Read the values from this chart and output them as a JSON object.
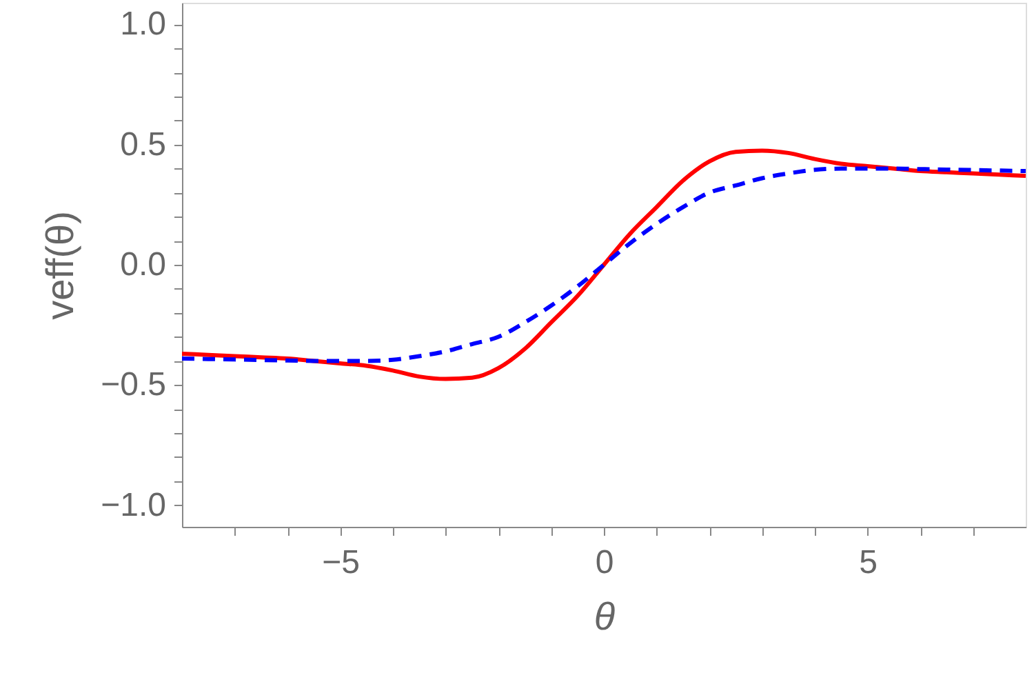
{
  "chart_data": {
    "type": "line",
    "xlabel": "θ",
    "ylabel": "veff(θ)",
    "x": [
      -8,
      -7.5,
      -7,
      -6.5,
      -6,
      -5.5,
      -5,
      -4.5,
      -4,
      -3.5,
      -3,
      -2.5,
      -2,
      -1.5,
      -1,
      -0.5,
      0,
      0.5,
      1,
      1.5,
      2,
      2.5,
      3,
      3.5,
      4,
      4.5,
      5,
      5.5,
      6,
      6.5,
      7,
      7.5,
      8
    ],
    "series": [
      {
        "color": "#ff0000",
        "line_style": "solid",
        "values": [
          -0.37,
          -0.375,
          -0.38,
          -0.385,
          -0.39,
          -0.4,
          -0.41,
          -0.42,
          -0.44,
          -0.465,
          -0.475,
          -0.47,
          -0.43,
          -0.35,
          -0.24,
          -0.13,
          0,
          0.13,
          0.24,
          0.35,
          0.43,
          0.47,
          0.475,
          0.465,
          0.44,
          0.42,
          0.41,
          0.4,
          0.39,
          0.385,
          0.38,
          0.375,
          0.37
        ]
      },
      {
        "color": "#0000ff",
        "line_style": "dashed",
        "values": [
          -0.39,
          -0.392,
          -0.394,
          -0.396,
          -0.398,
          -0.4,
          -0.4,
          -0.4,
          -0.395,
          -0.38,
          -0.36,
          -0.33,
          -0.3,
          -0.24,
          -0.17,
          -0.09,
          0,
          0.09,
          0.17,
          0.24,
          0.3,
          0.33,
          0.36,
          0.38,
          0.395,
          0.4,
          0.4,
          0.4,
          0.398,
          0.396,
          0.394,
          0.392,
          0.39
        ]
      }
    ],
    "xlim": [
      -8,
      8
    ],
    "ylim": [
      -1.09,
      1.09
    ],
    "xticks": [
      {
        "value": -7,
        "label": null
      },
      {
        "value": -6,
        "label": null
      },
      {
        "value": -5,
        "label": "−5"
      },
      {
        "value": -4,
        "label": null
      },
      {
        "value": -3,
        "label": null
      },
      {
        "value": -2,
        "label": null
      },
      {
        "value": -1,
        "label": null
      },
      0,
      {
        "value": 1,
        "label": null
      },
      {
        "value": 2,
        "label": null
      },
      {
        "value": 3,
        "label": null
      },
      {
        "value": 4,
        "label": null
      },
      5,
      {
        "value": 6,
        "label": null
      },
      {
        "value": 7,
        "label": null
      }
    ],
    "yticks": [
      {
        "value": -1.0,
        "label": "−1.0"
      },
      {
        "value": -0.9,
        "label": null
      },
      {
        "value": -0.8,
        "label": null
      },
      {
        "value": -0.7,
        "label": null
      },
      {
        "value": -0.6,
        "label": null
      },
      {
        "value": -0.5,
        "label": "−0.5"
      },
      {
        "value": -0.4,
        "label": null
      },
      {
        "value": -0.3,
        "label": null
      },
      {
        "value": -0.2,
        "label": null
      },
      {
        "value": -0.1,
        "label": null
      },
      {
        "value": 0,
        "label": "0.0"
      },
      {
        "value": 0.1,
        "label": null
      },
      {
        "value": 0.2,
        "label": null
      },
      {
        "value": 0.3,
        "label": null
      },
      {
        "value": 0.4,
        "label": null
      },
      {
        "value": 0.5,
        "label": "0.5"
      },
      {
        "value": 0.6,
        "label": null
      },
      {
        "value": 0.7,
        "label": null
      },
      {
        "value": 0.8,
        "label": null
      },
      {
        "value": 0.9,
        "label": null
      },
      {
        "value": 1.0,
        "label": "1.0"
      }
    ],
    "grid": false
  }
}
